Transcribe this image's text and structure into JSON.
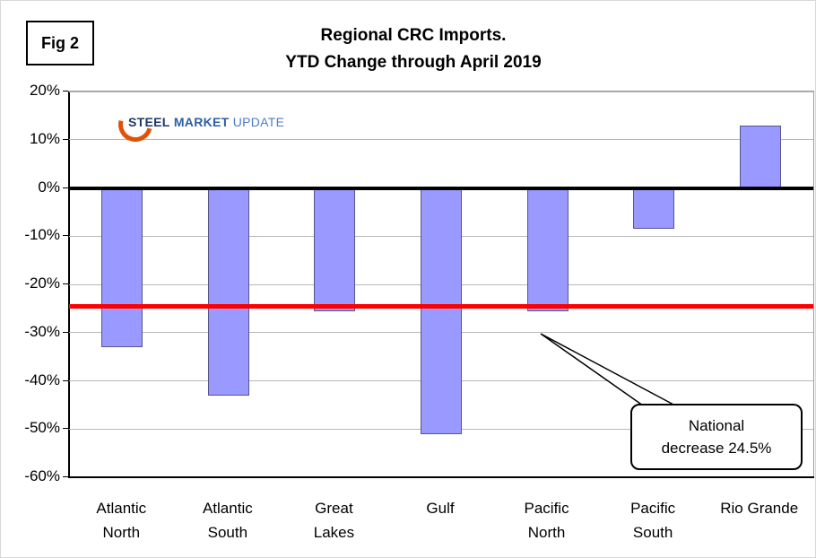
{
  "figure": {
    "label": "Fig 2"
  },
  "title": {
    "line1": "Regional CRC Imports.",
    "line2": "YTD Change through April 2019"
  },
  "logo": {
    "word1": "STEEL",
    "word2": "MARKET",
    "word3": "UPDATE"
  },
  "chart_data": {
    "type": "bar",
    "title": "Regional CRC Imports. YTD Change through April 2019",
    "categories": [
      "Atlantic North",
      "Atlantic South",
      "Great Lakes",
      "Gulf",
      "Pacific North",
      "Pacific South",
      "Rio Grande"
    ],
    "category_lines": [
      [
        "Atlantic",
        "North"
      ],
      [
        "Atlantic",
        "South"
      ],
      [
        "Great",
        "Lakes"
      ],
      [
        "Gulf"
      ],
      [
        "Pacific",
        "North"
      ],
      [
        "Pacific",
        "South"
      ],
      [
        "Rio Grande"
      ]
    ],
    "values": [
      -33,
      -43,
      -25.5,
      -51,
      -25.5,
      -8.5,
      13
    ],
    "ylim": [
      -60,
      20
    ],
    "ytick_step": 10,
    "ytick_suffix": "%",
    "grid": true,
    "bar_color": "#9999FF",
    "bar_border_color": "#56568C",
    "zero_line": {
      "value": 0,
      "color": "#000000",
      "width": 4
    },
    "reference_line": {
      "value": -24.5,
      "color": "#FF0000",
      "width": 5,
      "label": "National decrease 24.5%"
    }
  },
  "annotation": {
    "line1": "National",
    "line2": "decrease 24.5%"
  }
}
